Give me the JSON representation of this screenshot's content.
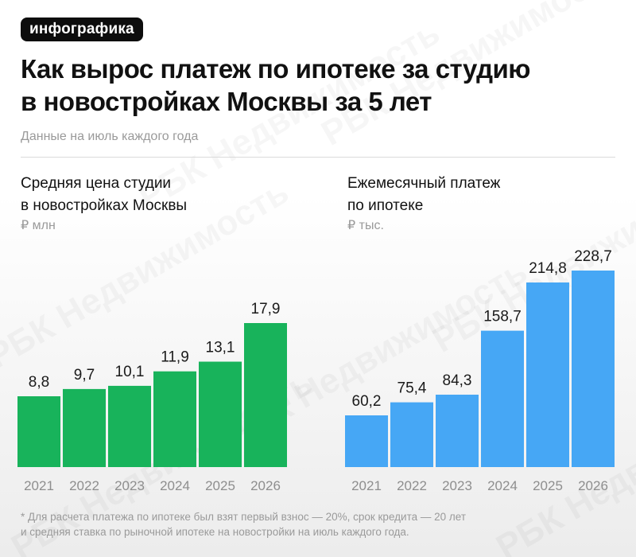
{
  "header": {
    "badge": "инфографика",
    "title_line1": "Как вырос платеж по ипотеке за студию",
    "title_line2": "в новостройках Москвы за 5 лет",
    "subtitle": "Данные на июль каждого года"
  },
  "watermark": "РБК Недвижимость",
  "footnote": {
    "line1": "* Для расчета платежа по ипотеке был взят первый взнос — 20%, срок кредита — 20 лет",
    "line2": "и средняя ставка по рыночной ипотеке на новостройки на июль каждого года."
  },
  "chart_data": [
    {
      "type": "bar",
      "title_line1": "Средняя цена студии",
      "title_line2": "в новостройках Москвы",
      "unit": "₽ млн",
      "categories": [
        "2021",
        "2022",
        "2023",
        "2024",
        "2025",
        "2026"
      ],
      "values": [
        8.8,
        9.7,
        10.1,
        11.9,
        13.1,
        17.9
      ],
      "value_labels": [
        "8,8",
        "9,7",
        "10,1",
        "11,9",
        "13,1",
        "17,9"
      ],
      "ylim": [
        0,
        17.9
      ],
      "color": "#18b35b",
      "grid": false,
      "legend": "none"
    },
    {
      "type": "bar",
      "title_line1": "Ежемесячный платеж",
      "title_line2": "по ипотеке",
      "unit": "₽ тыс.",
      "categories": [
        "2021",
        "2022",
        "2023",
        "2024",
        "2025",
        "2026"
      ],
      "values": [
        60.2,
        75.4,
        84.3,
        158.7,
        214.8,
        228.7
      ],
      "value_labels": [
        "60,2",
        "75,4",
        "84,3",
        "158,7",
        "214,8",
        "228,7"
      ],
      "ylim": [
        0,
        228.7
      ],
      "color": "#46a7f5",
      "grid": false,
      "legend": "none"
    }
  ]
}
